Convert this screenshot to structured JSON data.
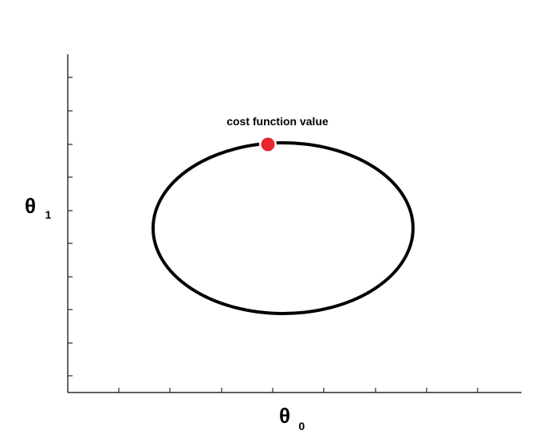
{
  "annotation": {
    "text": "cost function value"
  },
  "x_axis": {
    "symbol": "θ",
    "subscript": "0"
  },
  "y_axis": {
    "symbol": "θ",
    "subscript": "1"
  },
  "colors": {
    "point": "#e8262e",
    "contour": "#000000",
    "axes": "#000000"
  }
}
